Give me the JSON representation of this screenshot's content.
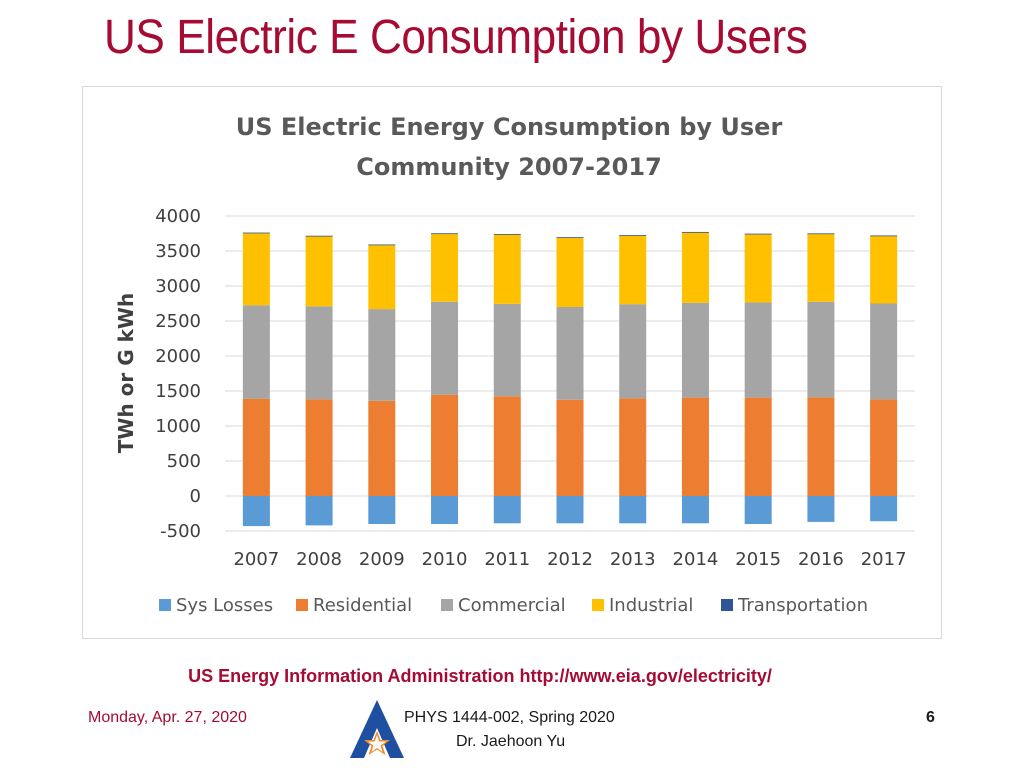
{
  "slide": {
    "title": "US Electric E Consumption by Users",
    "source": "US Energy Information Administration http://www.eia.gov/electricity/",
    "footer": {
      "date": "Monday, Apr. 27, 2020",
      "course": "PHYS 1444-002, Spring 2020",
      "author": "Dr. Jaehoon Yu",
      "page": "6"
    },
    "logo_icon": "uta-star-logo-icon"
  },
  "chart_data": {
    "type": "bar",
    "stacked": true,
    "title_lines": [
      "US Electric Energy Consumption by User",
      "Community 2007-2017"
    ],
    "ylabel": "TWh or G kWh",
    "xlabel": "",
    "ylim": [
      -500,
      4000
    ],
    "yticks": [
      "4000",
      "3500",
      "3000",
      "2500",
      "2000",
      "1500",
      "1000",
      "500",
      "0",
      "-500"
    ],
    "grid": true,
    "legend_position": "bottom",
    "categories": [
      "2007",
      "2008",
      "2009",
      "2010",
      "2011",
      "2012",
      "2013",
      "2014",
      "2015",
      "2016",
      "2017"
    ],
    "series": [
      {
        "name": "Sys Losses",
        "color": "#5b9bd5",
        "values": [
          -430,
          -420,
          -400,
          -400,
          -390,
          -390,
          -390,
          -390,
          -400,
          -370,
          -360
        ]
      },
      {
        "name": "Residential",
        "color": "#ed7d31",
        "values": [
          1390,
          1380,
          1360,
          1445,
          1425,
          1375,
          1395,
          1405,
          1405,
          1410,
          1380
        ]
      },
      {
        "name": "Commercial",
        "color": "#a5a5a5",
        "values": [
          1335,
          1330,
          1310,
          1330,
          1320,
          1325,
          1345,
          1355,
          1360,
          1365,
          1370
        ]
      },
      {
        "name": "Industrial",
        "color": "#ffc000",
        "values": [
          1030,
          1000,
          915,
          970,
          990,
          990,
          980,
          1005,
          975,
          970,
          965
        ]
      },
      {
        "name": "Transportation",
        "color": "#2e5597",
        "values": [
          8,
          8,
          8,
          8,
          8,
          7,
          7,
          7,
          8,
          7,
          7
        ]
      }
    ]
  }
}
